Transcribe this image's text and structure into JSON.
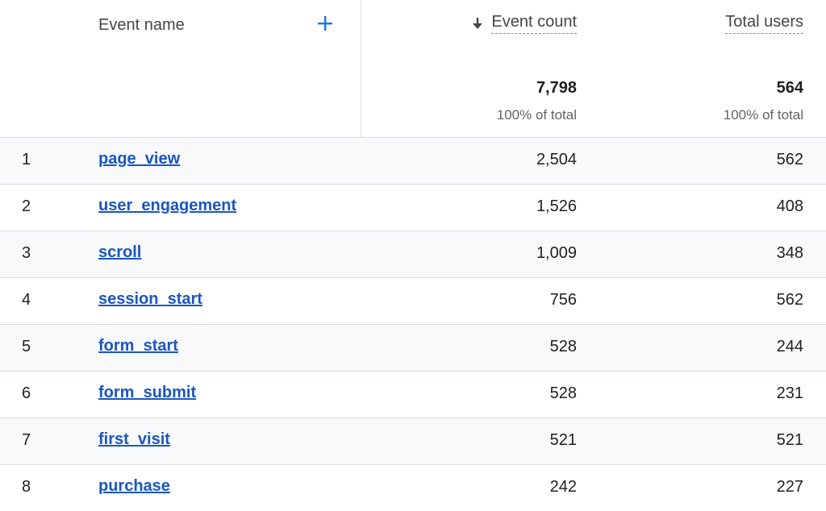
{
  "columns": {
    "event_name": "Event name",
    "event_count": "Event count",
    "total_users": "Total users"
  },
  "icons": {
    "add": "plus-icon",
    "sort": "arrow-down-icon"
  },
  "totals": {
    "event_count": "7,798",
    "event_count_sub": "100% of total",
    "total_users": "564",
    "total_users_sub": "100% of total"
  },
  "rows": [
    {
      "index": "1",
      "name": "page_view",
      "event_count": "2,504",
      "total_users": "562"
    },
    {
      "index": "2",
      "name": "user_engagement",
      "event_count": "1,526",
      "total_users": "408"
    },
    {
      "index": "3",
      "name": "scroll",
      "event_count": "1,009",
      "total_users": "348"
    },
    {
      "index": "4",
      "name": "session_start",
      "event_count": "756",
      "total_users": "562"
    },
    {
      "index": "5",
      "name": "form_start",
      "event_count": "528",
      "total_users": "244"
    },
    {
      "index": "6",
      "name": "form_submit",
      "event_count": "528",
      "total_users": "231"
    },
    {
      "index": "7",
      "name": "first_visit",
      "event_count": "521",
      "total_users": "521"
    },
    {
      "index": "8",
      "name": "purchase",
      "event_count": "242",
      "total_users": "227"
    }
  ],
  "colors": {
    "link": "#1a56c0",
    "accent": "#1a73e8",
    "row_shade": "#f8f9fa",
    "border": "#dadce0"
  }
}
